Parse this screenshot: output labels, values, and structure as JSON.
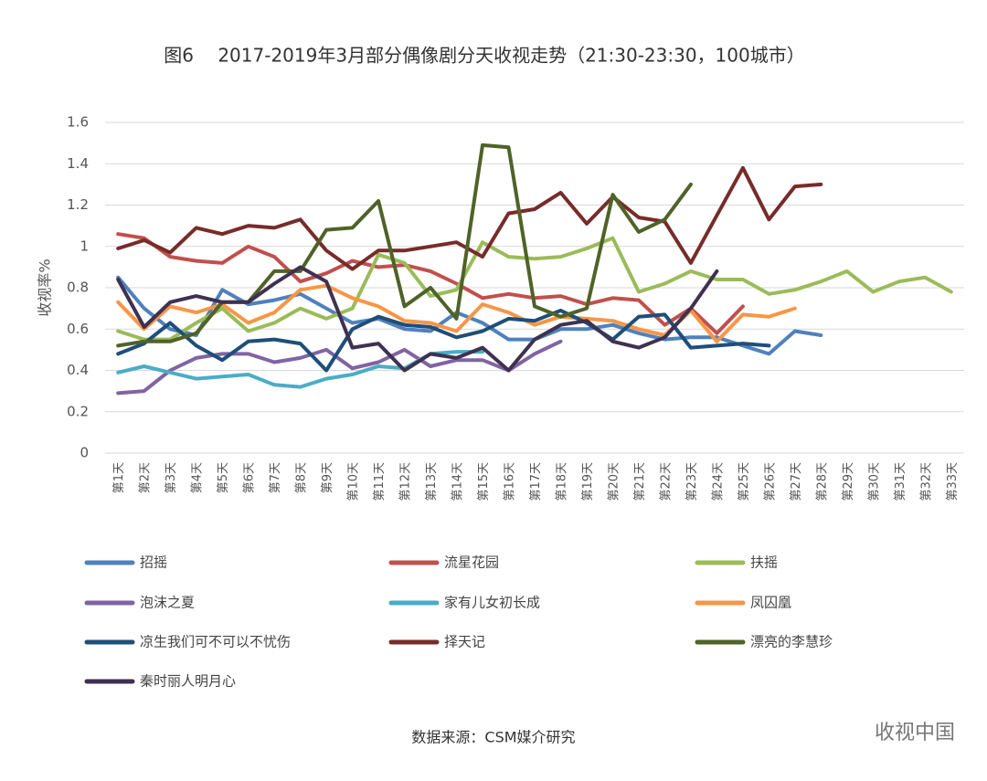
{
  "chart_data": {
    "type": "line",
    "title": "图6　 2017-2019年3月部分偶像剧分天收视走势（21:30-23:30，100城市）",
    "ylabel": "收视率%",
    "source": "数据来源：CSM媒介研究",
    "watermark": "收视中国",
    "categories": [
      "第1天",
      "第2天",
      "第3天",
      "第4天",
      "第5天",
      "第6天",
      "第7天",
      "第8天",
      "第9天",
      "第10天",
      "第11天",
      "第12天",
      "第13天",
      "第14天",
      "第15天",
      "第16天",
      "第17天",
      "第18天",
      "第19天",
      "第20天",
      "第21天",
      "第22天",
      "第23天",
      "第24天",
      "第25天",
      "第26天",
      "第27天",
      "第28天",
      "第29天",
      "第30天",
      "第31天",
      "第32天",
      "第33天"
    ],
    "ylim": [
      0,
      1.6
    ],
    "yticks": [
      {
        "value": 0,
        "label": "0"
      },
      {
        "value": 0.2,
        "label": "0.2"
      },
      {
        "value": 0.4,
        "label": "0.4"
      },
      {
        "value": 0.6,
        "label": "0.6"
      },
      {
        "value": 0.8,
        "label": "0.8"
      },
      {
        "value": 1,
        "label": "1"
      },
      {
        "value": 1.2,
        "label": "1.2"
      },
      {
        "value": 1.4,
        "label": "1.4"
      },
      {
        "value": 1.6,
        "label": "1.6"
      }
    ],
    "grid": true,
    "series": [
      {
        "name": "招摇",
        "color": "#4f81bd",
        "values": [
          0.85,
          0.7,
          0.6,
          0.57,
          0.79,
          0.72,
          0.74,
          0.77,
          0.7,
          0.63,
          0.65,
          0.6,
          0.59,
          0.68,
          0.63,
          0.55,
          0.55,
          0.6,
          0.6,
          0.62,
          0.58,
          0.55,
          0.56,
          0.56,
          0.52,
          0.48,
          0.59,
          0.57,
          null,
          null,
          null,
          null,
          null
        ]
      },
      {
        "name": "流星花园",
        "color": "#c0504d",
        "values": [
          1.06,
          1.04,
          0.95,
          0.93,
          0.92,
          1.0,
          0.95,
          0.83,
          0.87,
          0.93,
          0.9,
          0.91,
          0.88,
          0.82,
          0.75,
          0.77,
          0.75,
          0.76,
          0.72,
          0.75,
          0.74,
          0.62,
          0.7,
          0.58,
          0.71,
          null,
          null,
          null,
          null,
          null,
          null,
          null,
          null
        ]
      },
      {
        "name": "扶摇",
        "color": "#9bbb59",
        "values": [
          0.59,
          0.55,
          0.55,
          0.63,
          0.7,
          0.59,
          0.63,
          0.7,
          0.65,
          0.7,
          0.96,
          0.92,
          0.76,
          0.79,
          1.02,
          0.95,
          0.94,
          0.95,
          0.99,
          1.04,
          0.78,
          0.82,
          0.88,
          0.84,
          0.84,
          0.77,
          0.79,
          0.83,
          0.88,
          0.78,
          0.83,
          0.85,
          0.78
        ]
      },
      {
        "name": "泡沫之夏",
        "color": "#8064a2",
        "values": [
          0.29,
          0.3,
          0.4,
          0.46,
          0.48,
          0.48,
          0.44,
          0.46,
          0.5,
          0.41,
          0.44,
          0.5,
          0.42,
          0.45,
          0.45,
          0.4,
          0.48,
          0.54,
          null,
          null,
          null,
          null,
          null,
          null,
          null,
          null,
          null,
          null,
          null,
          null,
          null,
          null,
          null
        ]
      },
      {
        "name": "家有儿女初长成",
        "color": "#4bacc6",
        "values": [
          0.39,
          0.42,
          0.39,
          0.36,
          0.37,
          0.38,
          0.33,
          0.32,
          0.36,
          0.38,
          0.42,
          0.41,
          0.48,
          0.49,
          0.49,
          null,
          null,
          null,
          null,
          null,
          null,
          null,
          null,
          null,
          null,
          null,
          null,
          null,
          null,
          null,
          null,
          null,
          null
        ]
      },
      {
        "name": "凤囚凰",
        "color": "#f79646",
        "values": [
          0.73,
          0.6,
          0.71,
          0.68,
          0.72,
          0.63,
          0.68,
          0.79,
          0.81,
          0.75,
          0.71,
          0.64,
          0.63,
          0.59,
          0.72,
          0.68,
          0.62,
          0.66,
          0.65,
          0.64,
          0.6,
          0.57,
          0.69,
          0.54,
          0.67,
          0.66,
          0.7,
          null,
          null,
          null,
          null,
          null,
          null
        ]
      },
      {
        "name": "凉生我们可不可以不忧伤",
        "color": "#1f4e79",
        "values": [
          0.48,
          0.53,
          0.63,
          0.52,
          0.45,
          0.54,
          0.55,
          0.53,
          0.4,
          0.6,
          0.66,
          0.62,
          0.61,
          0.56,
          0.59,
          0.65,
          0.64,
          0.69,
          0.63,
          0.55,
          0.66,
          0.67,
          0.51,
          0.52,
          0.53,
          0.52,
          null,
          null,
          null,
          null,
          null,
          null,
          null
        ]
      },
      {
        "name": "择天记",
        "color": "#772c2a",
        "values": [
          0.99,
          1.03,
          0.97,
          1.09,
          1.06,
          1.1,
          1.09,
          1.13,
          0.98,
          0.89,
          0.98,
          0.98,
          1.0,
          1.02,
          0.95,
          1.16,
          1.18,
          1.26,
          1.11,
          1.24,
          1.14,
          1.12,
          0.92,
          1.15,
          1.38,
          1.13,
          1.29,
          1.3,
          null,
          null,
          null,
          null,
          null
        ]
      },
      {
        "name": "漂亮的李慧珍",
        "color": "#4f6228",
        "values": [
          0.52,
          0.54,
          0.54,
          0.58,
          0.73,
          0.73,
          0.88,
          0.88,
          1.08,
          1.09,
          1.22,
          0.71,
          0.8,
          0.65,
          1.49,
          1.48,
          0.71,
          0.66,
          0.7,
          1.25,
          1.07,
          1.13,
          1.3,
          null,
          null,
          null,
          null,
          null,
          null,
          null,
          null,
          null,
          null
        ]
      },
      {
        "name": "秦时丽人明月心",
        "color": "#3f3151",
        "values": [
          0.84,
          0.61,
          0.73,
          0.76,
          0.73,
          0.73,
          0.82,
          0.9,
          0.83,
          0.51,
          0.53,
          0.4,
          0.48,
          0.46,
          0.51,
          0.4,
          0.55,
          0.62,
          0.64,
          0.54,
          0.51,
          0.56,
          0.7,
          0.88,
          null,
          null,
          null,
          null,
          null,
          null,
          null,
          null,
          null
        ]
      }
    ]
  }
}
